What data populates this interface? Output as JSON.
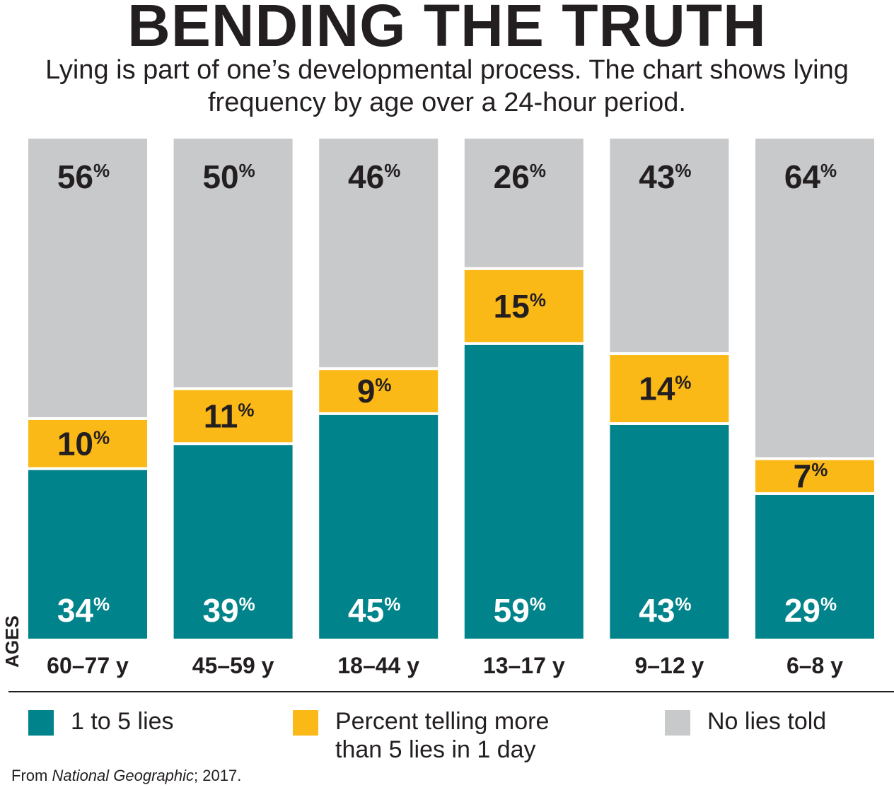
{
  "colors": {
    "one_to_five": "#00838a",
    "more_than_five": "#fbb917",
    "no_lies": "#c8c9cb",
    "text_dark": "#231f20",
    "text_light": "#ffffff"
  },
  "chart_data": {
    "type": "bar",
    "stacked": true,
    "title": "BENDING THE TRUTH",
    "subtitle": "Lying is part of one’s developmental process. The chart shows lying frequency by age over a 24-hour period.",
    "xlabel": "AGES",
    "ylabel": "",
    "ylim": [
      0,
      100
    ],
    "value_suffix": "%",
    "categories": [
      "60–77 y",
      "45–59 y",
      "18–44 y",
      "13–17 y",
      "9–12 y",
      "6–8 y"
    ],
    "series": [
      {
        "name": "1 to 5 lies",
        "values": [
          34,
          39,
          45,
          59,
          43,
          29
        ]
      },
      {
        "name": "Percent telling more than 5 lies in 1 day",
        "values": [
          10,
          11,
          9,
          15,
          14,
          7
        ]
      },
      {
        "name": "No lies told",
        "values": [
          56,
          50,
          46,
          26,
          43,
          64
        ]
      }
    ],
    "legend_position": "bottom",
    "grid": false
  },
  "source": {
    "prefix": "From ",
    "publication": "National Geographic",
    "suffix": "; 2017."
  }
}
